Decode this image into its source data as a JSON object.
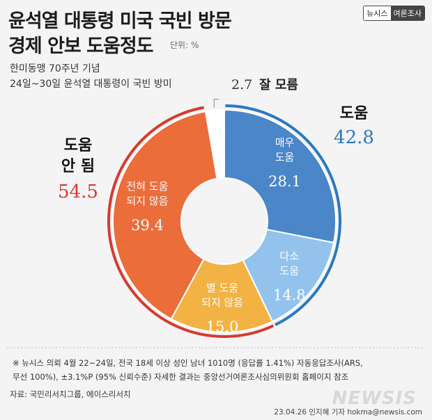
{
  "header": {
    "title_line1": "윤석열 대통령 미국 국빈 방문",
    "title_line2": "경제 안보 도움정도",
    "unit": "단위: %",
    "brand_left": "뉴시스",
    "brand_right": "여론조사",
    "subtitle_line1": "한미동맹 70주년 기념",
    "subtitle_line2": "24일~30일 윤석열 대통령이 국빈 방미"
  },
  "chart_data": {
    "type": "pie",
    "style": "donut",
    "slices": [
      {
        "label": "매우 도움",
        "label_lines": [
          "매우",
          "도움"
        ],
        "value": 28.1,
        "color": "#4a86c8"
      },
      {
        "label": "다소 도움",
        "label_lines": [
          "다소",
          "도움"
        ],
        "value": 14.8,
        "color": "#93c3ec"
      },
      {
        "label": "별 도움 되지 않음",
        "label_lines": [
          "별 도움",
          "되지 않음"
        ],
        "value": 15.0,
        "color": "#f3b244"
      },
      {
        "label": "전혀 도움 되지 않음",
        "label_lines": [
          "전혀 도움",
          "되지 않음"
        ],
        "value": 39.4,
        "color": "#ea6d3a"
      },
      {
        "label": "잘 모름",
        "value": 2.7,
        "color": "#ffffff"
      }
    ],
    "groups": [
      {
        "label": "도움",
        "value": 42.8,
        "color": "#2a78c0"
      },
      {
        "label_lines": [
          "도움",
          "안 됨"
        ],
        "value": 54.5,
        "color": "#d63a2f"
      }
    ],
    "dont_know": {
      "label": "잘 모름",
      "value": 2.7
    }
  },
  "footer": {
    "note_line1": "※ 뉴시스 의뢰 4월 22~24일, 전국 18세 이상 성인 남녀 1010명 (응답률 1.41%) 자동응답조사(ARS,",
    "note_line2": "무선 100%), ±3.1%P (95% 신뢰수준) 자세한 결과는 중앙선거여론조사심의위원회 홈페이지 참조",
    "source": "자료: 국민리서치그룹, 에이스리서치",
    "credit": "23.04.26 인지혜 기자 hokma@newsis.com",
    "logo": "NEWSIS"
  }
}
